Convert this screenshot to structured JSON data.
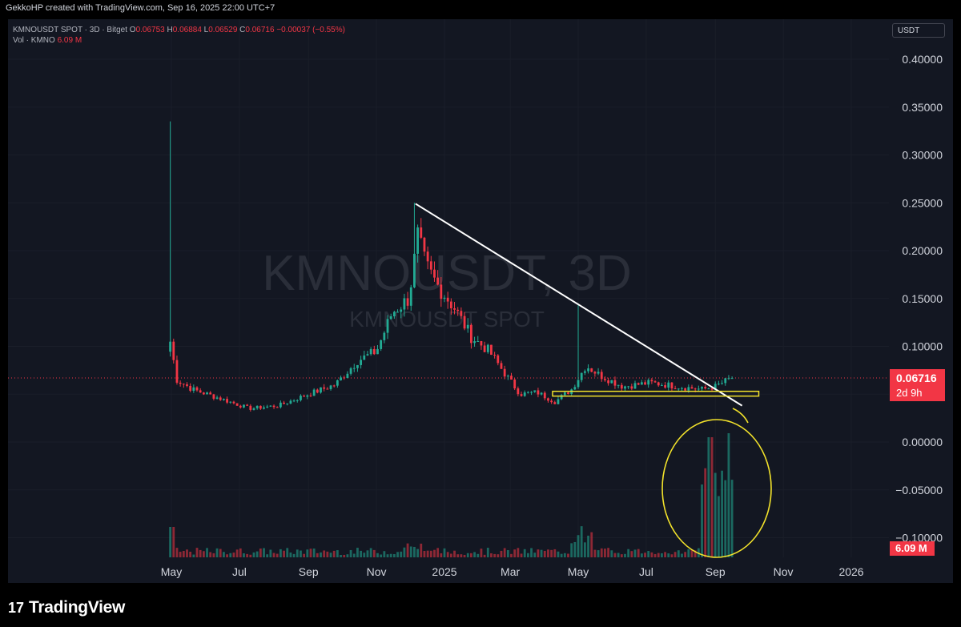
{
  "header": {
    "attribution": "GekkoHP created with TradingView.com, Sep 16, 2025 22:00 UTC+7"
  },
  "legend": {
    "symbol": "KMNOUSDT SPOT · 3D · Bitget",
    "o_label": "O",
    "o": "0.06753",
    "h_label": "H",
    "h": "0.06884",
    "l_label": "L",
    "l": "0.06529",
    "c_label": "C",
    "c": "0.06716",
    "change": "−0.00037 (−0.55%)",
    "vol_label": "Vol · KMNO",
    "vol": "6.09 M"
  },
  "currency_button": "USDT",
  "watermark": {
    "main": "KMNOUSDT, 3D",
    "sub": "KMNOUSDT SPOT"
  },
  "last_price": {
    "value": "0.06716",
    "countdown": "2d 9h"
  },
  "volume_tag": "6.09 M",
  "footer": {
    "brand": "TradingView",
    "icon": "17"
  },
  "colors": {
    "up": "#22ab94",
    "down": "#f23645",
    "background": "#131722",
    "trendline": "#ffffff",
    "annotation": "#f2e22b"
  },
  "chart_data": {
    "type": "candlestick",
    "title": "KMNOUSDT SPOT · 3D · Bitget",
    "y_axis": {
      "ticks": [
        "0.40000",
        "0.35000",
        "0.30000",
        "0.25000",
        "0.20000",
        "0.15000",
        "0.10000",
        "0.05000",
        "0.00000",
        "−0.05000",
        "−0.10000"
      ],
      "range": [
        -0.11,
        0.41
      ]
    },
    "x_axis": {
      "ticks": [
        "May",
        "Jul",
        "Sep",
        "Nov",
        "2025",
        "Mar",
        "May",
        "Jul",
        "Sep",
        "Nov",
        "2026"
      ]
    },
    "price_path": [
      {
        "date": "2024-04-30",
        "price": 0.105
      },
      {
        "date": "2024-05-06",
        "price": 0.065
      },
      {
        "date": "2024-05-20",
        "price": 0.055
      },
      {
        "date": "2024-06-15",
        "price": 0.045
      },
      {
        "date": "2024-07-10",
        "price": 0.035
      },
      {
        "date": "2024-08-05",
        "price": 0.038
      },
      {
        "date": "2024-09-01",
        "price": 0.05
      },
      {
        "date": "2024-09-25",
        "price": 0.06
      },
      {
        "date": "2024-10-15",
        "price": 0.085
      },
      {
        "date": "2024-11-01",
        "price": 0.095
      },
      {
        "date": "2024-11-15",
        "price": 0.135
      },
      {
        "date": "2024-11-30",
        "price": 0.15
      },
      {
        "date": "2024-12-08",
        "price": 0.215
      },
      {
        "date": "2024-12-15",
        "price": 0.185
      },
      {
        "date": "2024-12-25",
        "price": 0.165
      },
      {
        "date": "2025-01-10",
        "price": 0.14
      },
      {
        "date": "2025-01-25",
        "price": 0.11
      },
      {
        "date": "2025-02-10",
        "price": 0.095
      },
      {
        "date": "2025-02-25",
        "price": 0.07
      },
      {
        "date": "2025-03-10",
        "price": 0.05
      },
      {
        "date": "2025-03-25",
        "price": 0.052
      },
      {
        "date": "2025-04-10",
        "price": 0.042
      },
      {
        "date": "2025-04-25",
        "price": 0.055
      },
      {
        "date": "2025-05-08",
        "price": 0.08
      },
      {
        "date": "2025-05-20",
        "price": 0.07
      },
      {
        "date": "2025-06-10",
        "price": 0.058
      },
      {
        "date": "2025-07-05",
        "price": 0.062
      },
      {
        "date": "2025-07-30",
        "price": 0.058
      },
      {
        "date": "2025-08-20",
        "price": 0.055
      },
      {
        "date": "2025-09-01",
        "price": 0.058
      },
      {
        "date": "2025-09-16",
        "price": 0.06716
      }
    ],
    "highs": [
      {
        "date": "2024-04-30",
        "price": 0.335
      },
      {
        "date": "2024-12-05",
        "price": 0.25
      },
      {
        "date": "2025-05-02",
        "price": 0.143
      }
    ],
    "volume_peaks": [
      {
        "date": "2024-04-30",
        "volume": "high"
      },
      {
        "date": "2025-08-27",
        "volume": "high"
      },
      {
        "date": "2025-09-13",
        "volume": "high"
      }
    ],
    "annotations": [
      {
        "type": "trendline",
        "from": {
          "date": "2024-12-06",
          "price": 0.249
        },
        "to": {
          "date": "2025-09-25",
          "price": 0.038
        }
      },
      {
        "type": "support_box",
        "price_low": 0.048,
        "price_high": 0.053,
        "from": "2025-04-08",
        "to": "2025-10-10"
      },
      {
        "type": "circle",
        "around": "volume spike Aug–Sep 2025"
      }
    ]
  }
}
